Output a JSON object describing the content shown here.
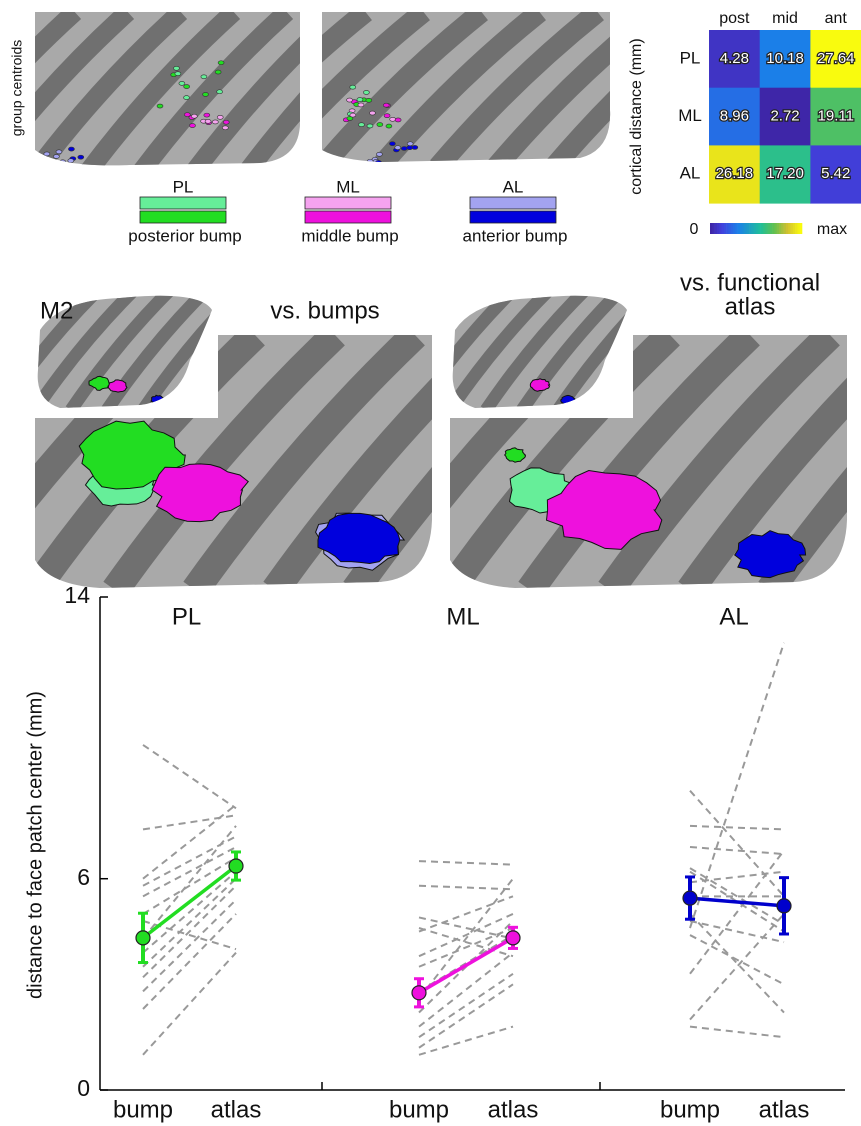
{
  "figure": {
    "group_label": "group centroids",
    "legend": [
      {
        "label": "PL",
        "name": "posterior bump",
        "light": "#66ee99",
        "dark": "#22dd22"
      },
      {
        "label": "ML",
        "name": "middle bump",
        "light": "#f5a3ef",
        "dark": "#ee11dd"
      },
      {
        "label": "AL",
        "name": "anterior bump",
        "light": "#a3a3f0",
        "dark": "#0000dd"
      }
    ],
    "panel_label": "M2",
    "left_title": "vs. bumps",
    "right_title_lines": [
      "vs. functional",
      "atlas"
    ]
  },
  "chart_data": [
    {
      "type": "heatmap",
      "ylabel": "cortical distance (mm)",
      "columns": [
        "post",
        "mid",
        "ant"
      ],
      "rows": [
        "PL",
        "ML",
        "AL"
      ],
      "values": [
        [
          4.28,
          10.18,
          27.64
        ],
        [
          8.96,
          2.72,
          19.11
        ],
        [
          26.18,
          17.2,
          5.42
        ]
      ],
      "value_labels": [
        [
          "4.28",
          "10.18",
          "27.64"
        ],
        [
          "8.96",
          "2.72",
          "19.11"
        ],
        [
          "26.18",
          "17.20",
          "5.42"
        ]
      ],
      "colorbar_labels": [
        "0",
        "max"
      ]
    },
    {
      "type": "line",
      "ylabel": "distance to face patch center (mm)",
      "ylim": [
        0,
        14
      ],
      "yticks": [
        0,
        6,
        14
      ],
      "grid": false,
      "subject_color": "#999999",
      "groups": [
        {
          "name": "PL",
          "color": "#22dd22",
          "categories": [
            "bump",
            "atlas"
          ],
          "mean": [
            4.32,
            6.36
          ],
          "error": [
            0.7,
            0.4
          ],
          "subjects": [
            [
              9.8,
              8.0
            ],
            [
              7.4,
              7.8
            ],
            [
              5.8,
              7.2
            ],
            [
              5.5,
              6.9
            ],
            [
              5.0,
              6.6
            ],
            [
              4.3,
              7.5
            ],
            [
              3.9,
              6.2
            ],
            [
              3.2,
              5.8
            ],
            [
              2.8,
              5.4
            ],
            [
              2.3,
              5.0
            ],
            [
              1.0,
              3.9
            ],
            [
              4.8,
              4.0
            ],
            [
              3.5,
              6.0
            ],
            [
              6.0,
              8.1
            ]
          ]
        },
        {
          "name": "ML",
          "color": "#ee11dd",
          "categories": [
            "bump",
            "atlas"
          ],
          "mean": [
            2.76,
            4.32
          ],
          "error": [
            0.4,
            0.3
          ],
          "subjects": [
            [
              6.5,
              6.4
            ],
            [
              5.8,
              5.7
            ],
            [
              4.9,
              4.3
            ],
            [
              4.5,
              5.5
            ],
            [
              3.8,
              5.0
            ],
            [
              3.5,
              4.6
            ],
            [
              2.6,
              6.0
            ],
            [
              2.2,
              4.8
            ],
            [
              1.8,
              3.9
            ],
            [
              1.5,
              3.3
            ],
            [
              1.2,
              3.0
            ],
            [
              1.0,
              1.8
            ],
            [
              4.6,
              3.8
            ],
            [
              2.8,
              4.4
            ]
          ]
        },
        {
          "name": "AL",
          "color": "#0000cc",
          "categories": [
            "bump",
            "atlas"
          ],
          "mean": [
            5.45,
            5.23
          ],
          "error": [
            0.6,
            0.8
          ],
          "subjects": [
            [
              4.6,
              12.7
            ],
            [
              8.5,
              5.5
            ],
            [
              7.5,
              7.4
            ],
            [
              6.9,
              6.7
            ],
            [
              6.2,
              4.5
            ],
            [
              5.9,
              6.2
            ],
            [
              5.5,
              5.5
            ],
            [
              4.8,
              4.2
            ],
            [
              4.4,
              3.0
            ],
            [
              3.3,
              6.8
            ],
            [
              2.0,
              5.0
            ],
            [
              1.8,
              1.5
            ],
            [
              5.0,
              2.2
            ],
            [
              6.3,
              4.7
            ]
          ]
        }
      ]
    }
  ]
}
